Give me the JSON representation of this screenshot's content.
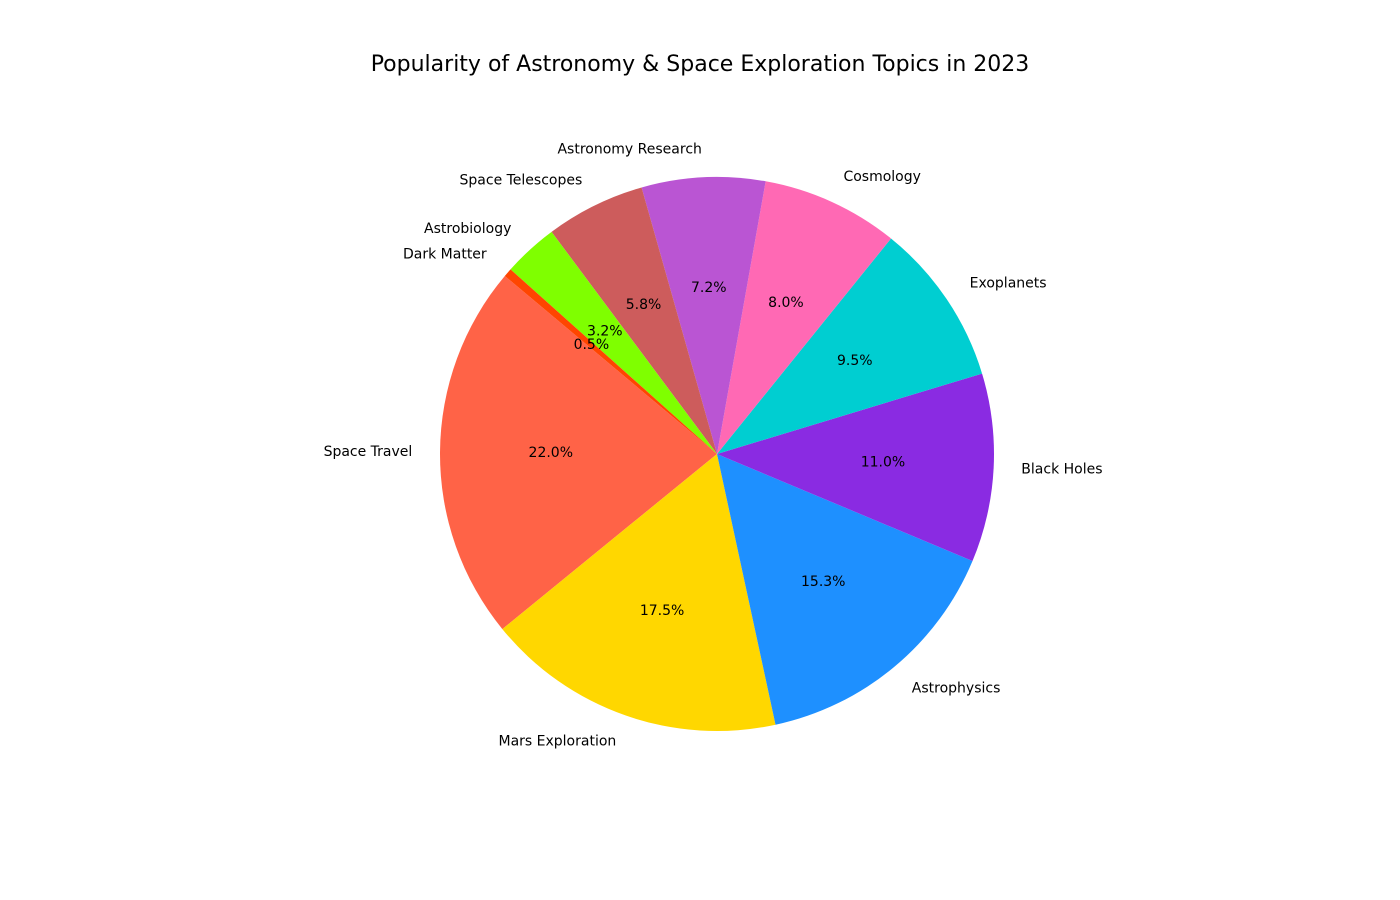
{
  "chart_data": {
    "type": "pie",
    "title": "Popularity of Astronomy & Space Exploration Topics in 2023",
    "start_angle_deg": 140,
    "direction": "counterclockwise",
    "slices": [
      {
        "label": "Space Travel",
        "value": 22.0,
        "pct_label": "22.0%",
        "color": "#FF6347"
      },
      {
        "label": "Mars Exploration",
        "value": 17.5,
        "pct_label": "17.5%",
        "color": "#FFD700"
      },
      {
        "label": "Astrophysics",
        "value": 15.3,
        "pct_label": "15.3%",
        "color": "#1E90FF"
      },
      {
        "label": "Black Holes",
        "value": 11.0,
        "pct_label": "11.0%",
        "color": "#8A2BE2"
      },
      {
        "label": "Exoplanets",
        "value": 9.5,
        "pct_label": "9.5%",
        "color": "#00CED1"
      },
      {
        "label": "Cosmology",
        "value": 8.0,
        "pct_label": "8.0%",
        "color": "#FF69B4"
      },
      {
        "label": "Astronomy Research",
        "value": 7.2,
        "pct_label": "7.2%",
        "color": "#BA55D3"
      },
      {
        "label": "Space Telescopes",
        "value": 5.8,
        "pct_label": "5.8%",
        "color": "#CD5C5C"
      },
      {
        "label": "Astrobiology",
        "value": 3.2,
        "pct_label": "3.2%",
        "color": "#7FFF00"
      },
      {
        "label": "Dark Matter",
        "value": 0.5,
        "pct_label": "0.5%",
        "color": "#FF4500"
      }
    ]
  }
}
